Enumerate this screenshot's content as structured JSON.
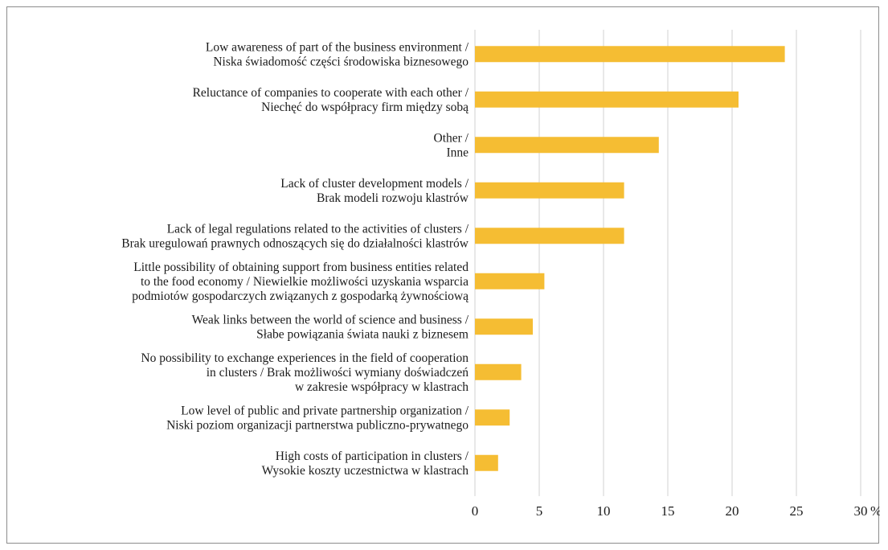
{
  "chart_data": {
    "type": "bar",
    "orientation": "horizontal",
    "unit": "%",
    "xlim": [
      0,
      30
    ],
    "xticks": [
      "0",
      "5",
      "10",
      "15",
      "20",
      "25",
      "30"
    ],
    "grid": true,
    "bar_color": "#f5bd33",
    "categories": [
      [
        "Low awareness of part of the business environment /",
        "Niska świadomość części środowiska biznesowego"
      ],
      [
        "Reluctance of companies to cooperate with each other /",
        "Niechęć do współpracy firm między sobą"
      ],
      [
        "Other /",
        "Inne"
      ],
      [
        "Lack of cluster development models /",
        "Brak modeli rozwoju klastrów"
      ],
      [
        "Lack of legal regulations related to the activities of clusters /",
        "Brak uregulowań prawnych odnoszących się do działalności klastrów"
      ],
      [
        "Little possibility of obtaining support from business entities related",
        "to the food economy / Niewielkie możliwości uzyskania wsparcia",
        "podmiotów gospodarczych związanych z gospodarką żywnościową"
      ],
      [
        "Weak links between the world of science and business /",
        "Słabe powiązania świata nauki z biznesem"
      ],
      [
        "No possibility to exchange experiences in the field of cooperation",
        "in clusters / Brak możliwości wymiany doświadczeń",
        "w zakresie współpracy w klastrach"
      ],
      [
        "Low level of public and private partnership organization /",
        "Niski poziom organizacji partnerstwa publiczno-prywatnego"
      ],
      [
        "High costs of participation in clusters /",
        "Wysokie koszty uczestnictwa w klastrach"
      ]
    ],
    "values": [
      24.1,
      20.5,
      14.3,
      11.6,
      11.6,
      5.4,
      4.5,
      3.6,
      2.7,
      1.8
    ]
  }
}
